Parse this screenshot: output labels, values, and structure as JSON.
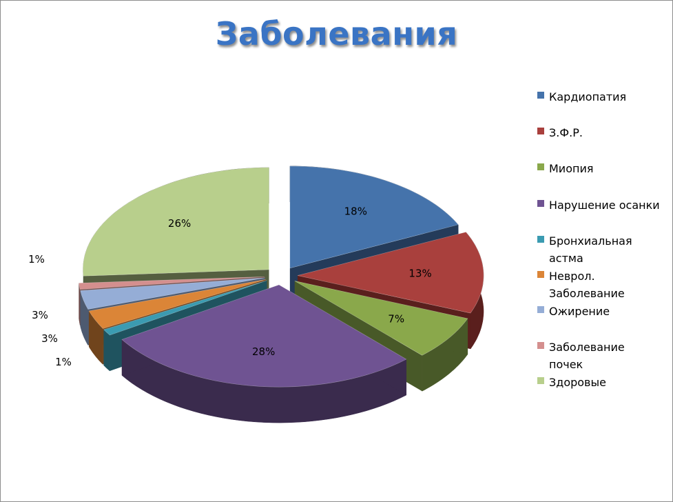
{
  "chart_data": {
    "type": "pie",
    "title": "Заболевания",
    "three_d": true,
    "legend_position": "right",
    "slices": [
      {
        "name": "Кардиопатия",
        "label": "18%",
        "value": 18,
        "color": "#4573ab",
        "dark": "#243b5a",
        "exploded": true
      },
      {
        "name": "З.Ф.Р.",
        "label": "13%",
        "value": 13,
        "color": "#a9403d",
        "dark": "#5a1f1d",
        "exploded": true
      },
      {
        "name": "Миопия",
        "label": "7%",
        "value": 7,
        "color": "#8aa84b",
        "dark": "#485928",
        "exploded": true
      },
      {
        "name": "Нарушение осанки",
        "label": "28%",
        "value": 28,
        "color": "#6f5392",
        "dark": "#3a2b4d",
        "exploded": true
      },
      {
        "name": "Бронхиальная астма",
        "label": "1%",
        "value": 1,
        "color": "#3b9bb1",
        "dark": "#1f535f",
        "exploded": true
      },
      {
        "name": "Неврол. Заболевание",
        "label": "3%",
        "value": 3,
        "color": "#db8537",
        "dark": "#70441c",
        "exploded": true
      },
      {
        "name": "Ожирение",
        "label": "3%",
        "value": 3,
        "color": "#95add6",
        "dark": "#4d5a70",
        "exploded": true
      },
      {
        "name": "Заболевание почек",
        "label": "1%",
        "value": 1,
        "color": "#d48f8e",
        "dark": "#6e4a49",
        "exploded": true
      },
      {
        "name": "Здоровые",
        "label": "26%",
        "value": 26,
        "color": "#b8cf8c",
        "dark": "#555f40",
        "exploded": true
      }
    ]
  },
  "legend": [
    {
      "label": "Кардиопатия",
      "color": "#4573ab"
    },
    {
      "label": "З.Ф.Р.",
      "color": "#a9403d"
    },
    {
      "label": "Миопия",
      "color": "#8aa84b"
    },
    {
      "label": "Нарушение осанки",
      "color": "#6f5392"
    },
    {
      "label": "Бронхиальная\nастма",
      "color": "#3b9bb1"
    },
    {
      "label": "Неврол.\nЗаболевание",
      "color": "#db8537"
    },
    {
      "label": "Ожирение",
      "color": "#95add6"
    },
    {
      "label": "Заболевание\nпочек",
      "color": "#d48f8e"
    },
    {
      "label": "Здоровые",
      "color": "#b8cf8c"
    }
  ]
}
